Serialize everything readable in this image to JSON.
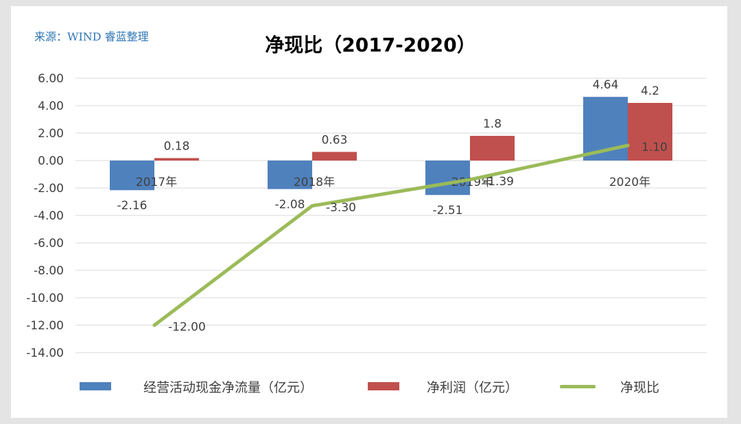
{
  "source_note": "来源：WIND 睿蓝整理",
  "chart_data": {
    "type": "bar",
    "title": "净现比（2017-2020）",
    "categories": [
      "2017年",
      "2018年",
      "2019年",
      "2020年"
    ],
    "series": [
      {
        "name": "经营活动现金净流量（亿元）",
        "kind": "bar",
        "color": "#4f81bd",
        "values": [
          -2.16,
          -2.08,
          -2.51,
          4.64
        ],
        "labels": [
          "-2.16",
          "-2.08",
          "-2.51",
          "4.64"
        ]
      },
      {
        "name": "净利润（亿元）",
        "kind": "bar",
        "color": "#c0504d",
        "values": [
          0.18,
          0.63,
          1.8,
          4.2
        ],
        "labels": [
          "0.18",
          "0.63",
          "1.8",
          "4.2"
        ]
      },
      {
        "name": "净现比",
        "kind": "line",
        "color": "#9bbb59",
        "values": [
          -12.0,
          -3.3,
          -1.39,
          1.1
        ],
        "labels": [
          "-12.00",
          "-3.30",
          "-1.39",
          "1.10"
        ]
      }
    ],
    "ylim": [
      -14,
      6
    ],
    "yticks": [
      "6.00",
      "4.00",
      "2.00",
      "0.00",
      "-2.00",
      "-4.00",
      "-6.00",
      "-8.00",
      "-10.00",
      "-12.00",
      "-14.00"
    ],
    "grid": true,
    "legend_position": "bottom"
  }
}
